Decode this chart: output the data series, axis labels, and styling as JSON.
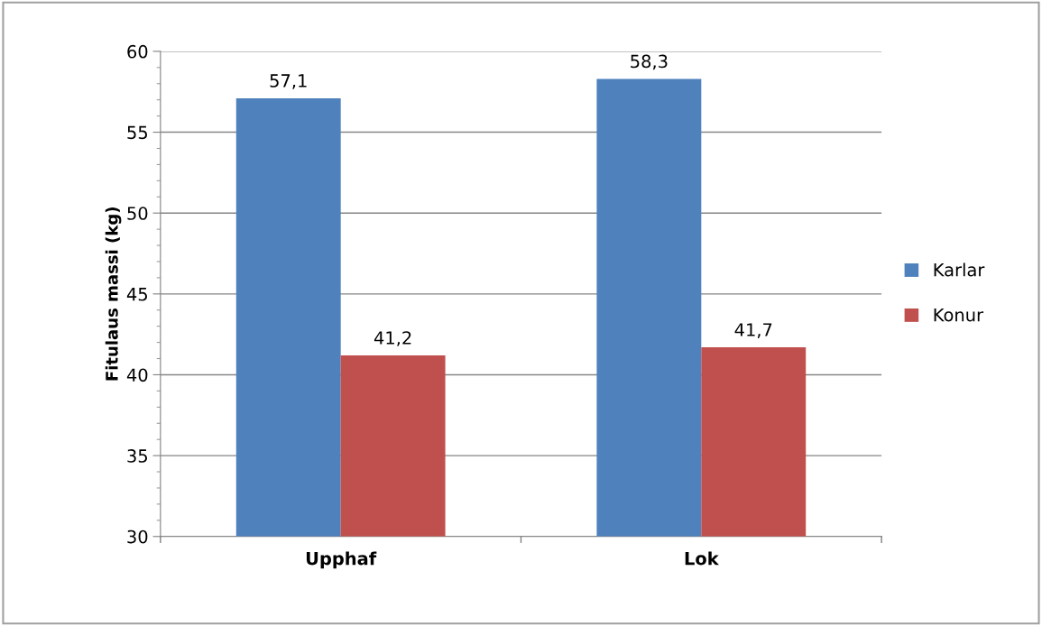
{
  "chart_data": {
    "type": "bar",
    "ylabel": "Fitulaus massi (kg)",
    "categories": [
      "Upphaf",
      "Lok"
    ],
    "series": [
      {
        "name": "Karlar",
        "color": "#4f81bd",
        "values": [
          57.1,
          58.3
        ],
        "value_labels": [
          "57,1",
          "58,3"
        ]
      },
      {
        "name": "Konur",
        "color": "#c0504d",
        "values": [
          41.2,
          41.7
        ],
        "value_labels": [
          "41,2",
          "41,7"
        ]
      }
    ],
    "ylim": [
      30,
      60
    ],
    "yticks": [
      30,
      35,
      40,
      45,
      50,
      55,
      60
    ],
    "grid": "y",
    "legend": "right"
  }
}
